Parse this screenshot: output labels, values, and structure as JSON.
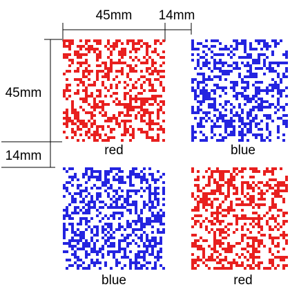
{
  "dimensions": {
    "width_label": "45mm",
    "gap_label": "14mm",
    "height_label": "45mm",
    "vgap_label": "14mm"
  },
  "colors": {
    "red": "#e8201f",
    "blue": "#2424e0"
  },
  "patterns": [
    {
      "label": "red",
      "color_key": "red"
    },
    {
      "label": "blue",
      "color_key": "blue"
    },
    {
      "label": "blue",
      "color_key": "blue"
    },
    {
      "label": "red",
      "color_key": "red"
    }
  ]
}
